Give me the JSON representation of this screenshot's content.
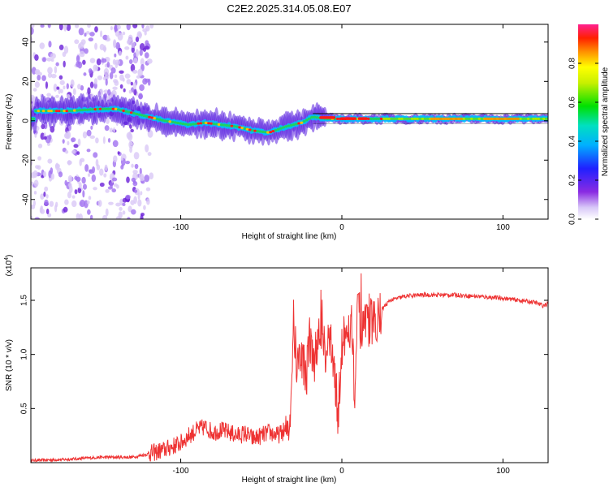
{
  "title": "C2E2.2025.314.05.08.E07",
  "chart_data": [
    {
      "type": "heatmap",
      "title": "C2E2.2025.314.05.08.E07",
      "xlabel": "Height of straight line (km)",
      "ylabel": "Frequency (Hz)",
      "xlim": [
        -193,
        128
      ],
      "ylim": [
        -50,
        49
      ],
      "xticks": [
        -100,
        0,
        100
      ],
      "xtick_labels": [
        "-100",
        "0",
        "100"
      ],
      "yticks": [
        40,
        20,
        0,
        -20,
        -40
      ],
      "ytick_labels": [
        "40",
        "20",
        "0",
        "-20",
        "-40"
      ],
      "colorbar": {
        "label": "Normalized spectral amplitude",
        "ticks": [
          0.0,
          0.2,
          0.4,
          0.6,
          0.8
        ],
        "tick_labels": [
          "0.0",
          "0.2",
          "0.4",
          "0.6",
          "0.8"
        ],
        "range": [
          0,
          1
        ],
        "colormap": "rainbow (white-violet-blue-cyan-green-yellow-orange-red-magenta)"
      },
      "ridge": [
        {
          "x": -190,
          "freq": 5
        },
        {
          "x": -170,
          "freq": 5
        },
        {
          "x": -150,
          "freq": 6
        },
        {
          "x": -140,
          "freq": 6
        },
        {
          "x": -125,
          "freq": 3
        },
        {
          "x": -110,
          "freq": 0
        },
        {
          "x": -95,
          "freq": -2
        },
        {
          "x": -85,
          "freq": -1
        },
        {
          "x": -75,
          "freq": -2
        },
        {
          "x": -65,
          "freq": -3
        },
        {
          "x": -55,
          "freq": -5
        },
        {
          "x": -45,
          "freq": -6
        },
        {
          "x": -35,
          "freq": -3
        },
        {
          "x": -25,
          "freq": -1
        },
        {
          "x": -18,
          "freq": 2
        },
        {
          "x": -10,
          "freq": 1
        },
        {
          "x": 0,
          "freq": 1
        },
        {
          "x": 20,
          "freq": 1
        },
        {
          "x": 50,
          "freq": 1
        },
        {
          "x": 90,
          "freq": 1
        },
        {
          "x": 128,
          "freq": 1
        }
      ]
    },
    {
      "type": "line",
      "xlabel": "Height of straight line (km)",
      "ylabel": "SNR (10 * v/v)",
      "y_multiplier_label": "(x10",
      "y_multiplier_exp": "4",
      "xlim": [
        -193,
        128
      ],
      "ylim": [
        0,
        1.8
      ],
      "xticks": [
        -100,
        0,
        100
      ],
      "xtick_labels": [
        "-100",
        "0",
        "100"
      ],
      "yticks": [
        0.5,
        1.0,
        1.5
      ],
      "ytick_labels": [
        "0.5",
        "1.0",
        "1.5"
      ],
      "series": [
        {
          "name": "SNR",
          "color": "#ee3333",
          "x": [
            -193,
            -170,
            -150,
            -130,
            -120,
            -110,
            -100,
            -95,
            -90,
            -85,
            -80,
            -75,
            -70,
            -65,
            -60,
            -55,
            -50,
            -45,
            -40,
            -35,
            -32,
            -30,
            -28,
            -25,
            -22,
            -20,
            -18,
            -15,
            -12,
            -10,
            -8,
            -5,
            -2,
            0,
            3,
            6,
            8,
            10,
            12,
            15,
            18,
            22,
            25,
            30,
            35,
            40,
            50,
            60,
            70,
            80,
            90,
            100,
            110,
            120,
            125,
            128
          ],
          "values": [
            0.02,
            0.03,
            0.05,
            0.05,
            0.08,
            0.12,
            0.18,
            0.25,
            0.3,
            0.33,
            0.28,
            0.3,
            0.28,
            0.25,
            0.27,
            0.22,
            0.25,
            0.28,
            0.25,
            0.3,
            0.45,
            1.3,
            0.9,
            1.0,
            0.8,
            1.2,
            0.9,
            1.1,
            1.3,
            1.0,
            1.2,
            0.9,
            0.4,
            1.1,
            1.2,
            1.35,
            0.55,
            1.5,
            1.2,
            1.25,
            1.3,
            1.35,
            1.42,
            1.5,
            1.52,
            1.54,
            1.55,
            1.55,
            1.55,
            1.54,
            1.53,
            1.52,
            1.5,
            1.48,
            1.45,
            1.47
          ]
        }
      ]
    }
  ]
}
